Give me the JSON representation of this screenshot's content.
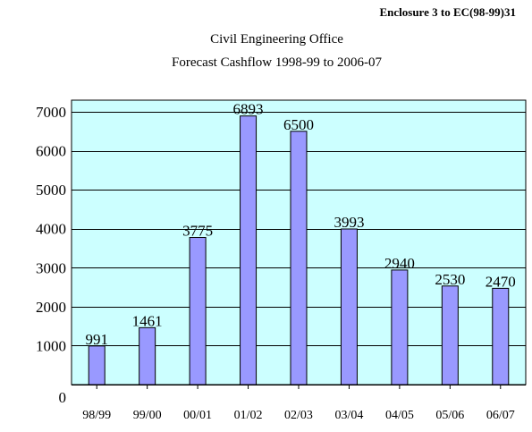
{
  "enclosure": "Enclosure 3 to EC(98-99)31",
  "chart_data": {
    "type": "bar",
    "title": "Civil Engineering Office",
    "subtitle": "Forecast Cashflow 1998-99  to 2006-07",
    "categories": [
      "98/99",
      "99/00",
      "00/01",
      "01/02",
      "02/03",
      "03/04",
      "04/05",
      "05/06",
      "06/07"
    ],
    "values": [
      991,
      1461,
      3775,
      6893,
      6500,
      3993,
      2940,
      2530,
      2470
    ],
    "data_labels": [
      "991",
      "1461",
      "3775",
      "6893",
      "6500",
      "3993",
      "2940",
      "2530",
      "2470"
    ],
    "bar_heights": [
      991,
      1461,
      3775,
      6893,
      6500,
      3993,
      2940,
      2530,
      2470
    ],
    "yticks": [
      0,
      1000,
      2000,
      3000,
      4000,
      5000,
      6000,
      7000
    ],
    "ylim": [
      0,
      7000
    ],
    "grid": true,
    "legend": false,
    "colors": {
      "plot_background": "#ccffff",
      "bar_fill": "#9999ff",
      "bar_stroke": "#000000",
      "gridline": "#000000"
    }
  }
}
